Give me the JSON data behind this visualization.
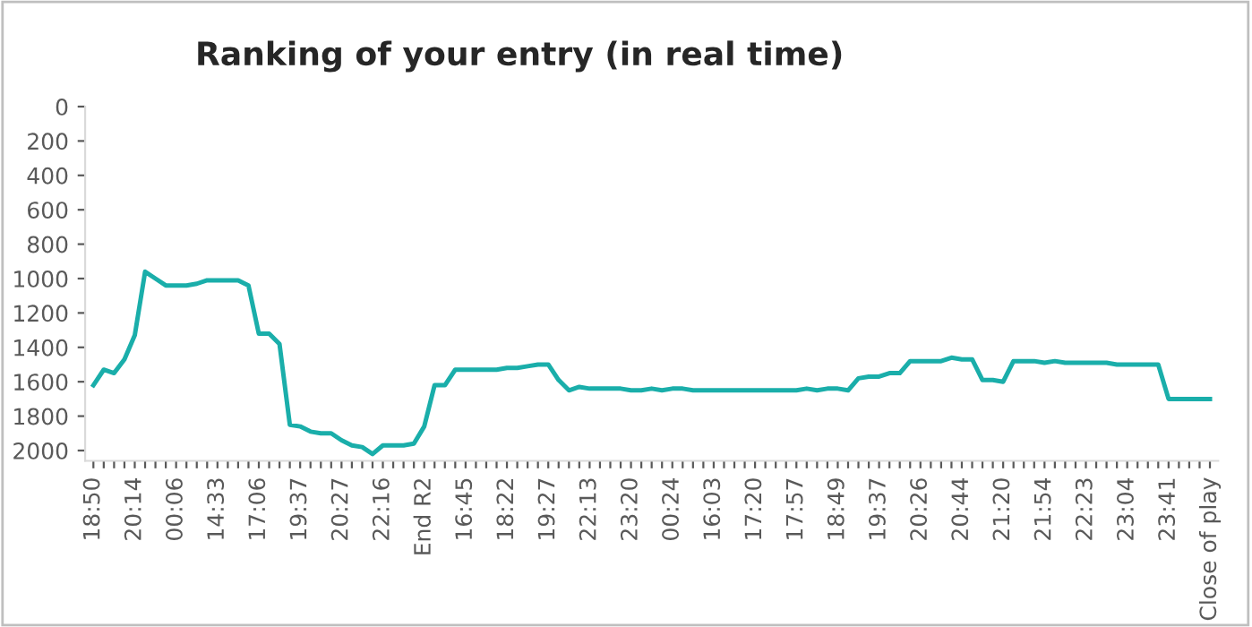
{
  "chart_data": {
    "type": "line",
    "title": "Ranking of your entry (in real time)",
    "categories": [
      "18:50",
      null,
      null,
      null,
      "20:14",
      null,
      null,
      null,
      "00:06",
      null,
      null,
      null,
      "14:33",
      null,
      null,
      null,
      "17:06",
      null,
      null,
      null,
      "19:37",
      null,
      null,
      null,
      "20:27",
      null,
      null,
      null,
      "22:16",
      null,
      null,
      null,
      "End R2",
      null,
      null,
      null,
      "16:45",
      null,
      null,
      null,
      "18:22",
      null,
      null,
      null,
      "19:27",
      null,
      null,
      null,
      "22:13",
      null,
      null,
      null,
      "23:20",
      null,
      null,
      null,
      "00:24",
      null,
      null,
      null,
      "16:03",
      null,
      null,
      null,
      "17:20",
      null,
      null,
      null,
      "17:57",
      null,
      null,
      null,
      "18:49",
      null,
      null,
      null,
      "19:37",
      null,
      null,
      null,
      "20:26",
      null,
      null,
      null,
      "20:44",
      null,
      null,
      null,
      "21:20",
      null,
      null,
      null,
      "21:54",
      null,
      null,
      null,
      "22:23",
      null,
      null,
      null,
      "23:04",
      null,
      null,
      null,
      "23:41",
      null,
      null,
      null,
      "Close of play"
    ],
    "series": [
      {
        "color": "#1aaeaa",
        "values": [
          1620,
          1530,
          1550,
          1470,
          1330,
          960,
          1000,
          1040,
          1040,
          1040,
          1030,
          1010,
          1010,
          1010,
          1010,
          1040,
          1320,
          1320,
          1380,
          1850,
          1860,
          1890,
          1900,
          1900,
          1940,
          1970,
          1980,
          2020,
          1970,
          1970,
          1970,
          1960,
          1860,
          1620,
          1620,
          1530,
          1530,
          1530,
          1530,
          1530,
          1520,
          1520,
          1510,
          1500,
          1500,
          1590,
          1650,
          1630,
          1640,
          1640,
          1640,
          1640,
          1650,
          1650,
          1640,
          1650,
          1640,
          1640,
          1650,
          1650,
          1650,
          1650,
          1650,
          1650,
          1650,
          1650,
          1650,
          1650,
          1650,
          1640,
          1650,
          1640,
          1640,
          1650,
          1580,
          1570,
          1570,
          1550,
          1550,
          1480,
          1480,
          1480,
          1480,
          1460,
          1470,
          1470,
          1590,
          1590,
          1600,
          1480,
          1480,
          1480,
          1490,
          1480,
          1490,
          1490,
          1490,
          1490,
          1490,
          1500,
          1500,
          1500,
          1500,
          1500,
          1700,
          1700,
          1700,
          1700,
          1700
        ]
      }
    ],
    "ylim": [
      2060,
      0
    ],
    "yticks": [
      0,
      200,
      400,
      600,
      800,
      1000,
      1200,
      1400,
      1600,
      1800,
      2000
    ],
    "grid": false,
    "legend": false,
    "marker": "none",
    "line_style": "solid"
  }
}
